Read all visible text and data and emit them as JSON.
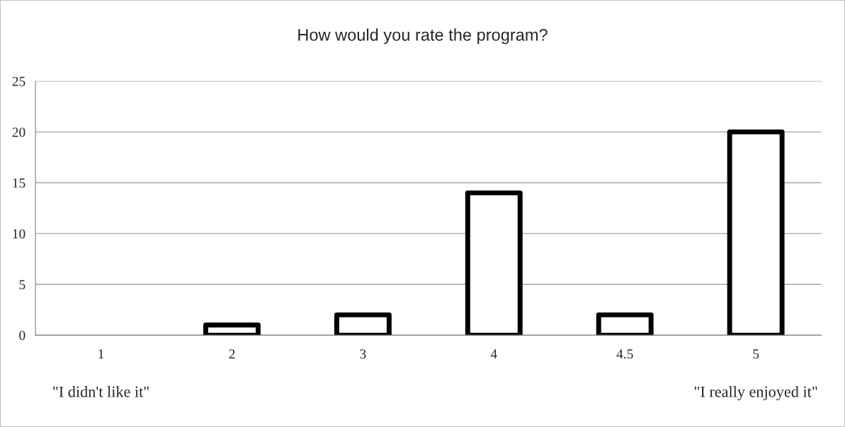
{
  "chart_data": {
    "type": "bar",
    "title": "How would you rate the program?",
    "categories": [
      "1",
      "2",
      "3",
      "4",
      "4.5",
      "5"
    ],
    "values": [
      0,
      1,
      2,
      14,
      2,
      20
    ],
    "color": "#ffffff",
    "ylim": [
      0,
      25
    ],
    "yticks": [
      0,
      5,
      10,
      15,
      20,
      25
    ],
    "grid": "y",
    "legend": false,
    "annotations": [
      "\"I didn't like it\"",
      "\"I really enjoyed it\""
    ]
  }
}
